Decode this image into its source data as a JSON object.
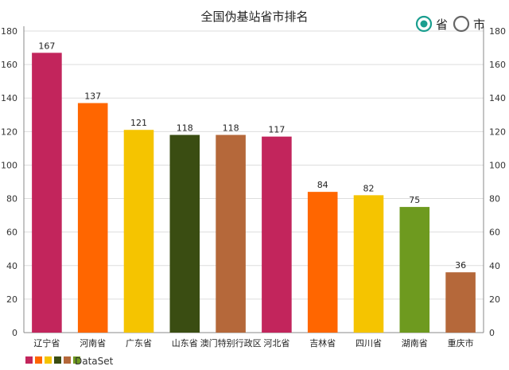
{
  "chart_data": {
    "type": "bar",
    "title": "全国伪基站省市排名",
    "categories": [
      "辽宁省",
      "河南省",
      "广东省",
      "山东省",
      "澳门特别行政区",
      "河北省",
      "吉林省",
      "四川省",
      "湖南省",
      "重庆市"
    ],
    "series": [
      {
        "name": "DataSet",
        "values": [
          167,
          137,
          121,
          118,
          118,
          117,
          84,
          82,
          75,
          36
        ]
      }
    ],
    "colors": [
      "#c2255c",
      "#ff6600",
      "#f5c400",
      "#3a4d12",
      "#b5683a",
      "#c2255c",
      "#ff6600",
      "#f5c400",
      "#6e9a1f",
      "#b5683a"
    ],
    "ylim": [
      0,
      180
    ],
    "yticks": [
      0,
      20,
      40,
      60,
      80,
      100,
      120,
      140,
      160,
      180
    ],
    "grid": true,
    "legend_position": "bottom-left",
    "dual_y_axis": true
  },
  "toggle": {
    "options": [
      {
        "label": "省",
        "selected": true
      },
      {
        "label": "市",
        "selected": false
      }
    ],
    "accent_color": "#1a9e8f",
    "inactive_color": "#666666"
  }
}
